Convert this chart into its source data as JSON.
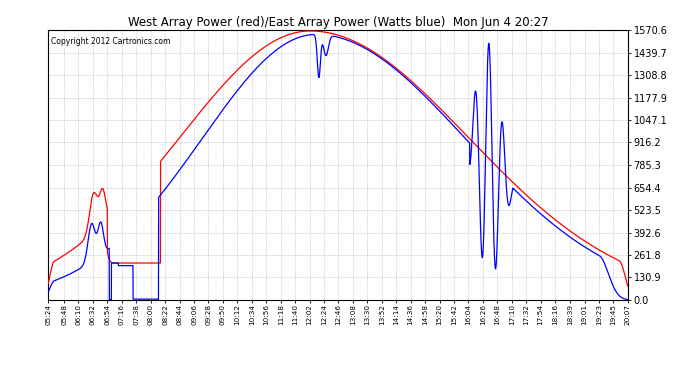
{
  "title": "West Array Power (red)/East Array Power (Watts blue)  Mon Jun 4 20:27",
  "copyright": "Copyright 2012 Cartronics.com",
  "y_ticks": [
    0.0,
    130.9,
    261.8,
    392.6,
    523.5,
    654.4,
    785.3,
    916.2,
    1047.1,
    1177.9,
    1308.8,
    1439.7,
    1570.6
  ],
  "x_labels": [
    "05:24",
    "05:48",
    "06:10",
    "06:32",
    "06:54",
    "07:16",
    "07:38",
    "08:00",
    "08:22",
    "08:44",
    "09:06",
    "09:28",
    "09:50",
    "10:12",
    "10:34",
    "10:56",
    "11:18",
    "11:40",
    "12:02",
    "12:24",
    "12:46",
    "13:08",
    "13:30",
    "13:52",
    "14:14",
    "14:36",
    "14:58",
    "15:20",
    "15:42",
    "16:04",
    "16:26",
    "16:48",
    "17:10",
    "17:32",
    "17:54",
    "18:16",
    "18:39",
    "19:01",
    "19:23",
    "19:45",
    "20:07"
  ],
  "background_color": "#ffffff",
  "grid_color": "#aaaaaa",
  "red_color": "#ff0000",
  "blue_color": "#0000ff",
  "title_color": "#000000",
  "copyright_color": "#000000",
  "ymax": 1570.6,
  "ymin": 0.0
}
